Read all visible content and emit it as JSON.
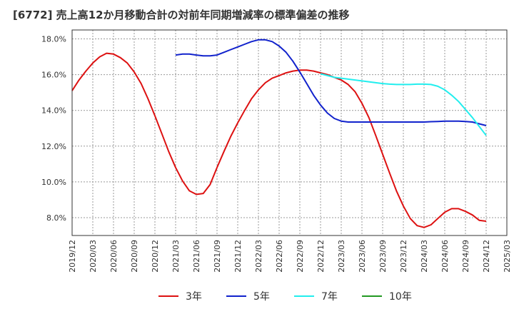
{
  "title": "[6772]  売上高12か月移動合計の対前年同期増減率の標準偏差の推移",
  "chart_data": {
    "type": "line",
    "title": "[6772]  売上高12か月移動合計の対前年同期増減率の標準偏差の推移",
    "xlabel": "",
    "ylabel": "",
    "x_ticks": [
      "2019/12",
      "2020/03",
      "2020/06",
      "2020/09",
      "2020/12",
      "2021/03",
      "2021/06",
      "2021/09",
      "2021/12",
      "2022/03",
      "2022/06",
      "2022/09",
      "2022/12",
      "2023/03",
      "2023/06",
      "2023/09",
      "2023/12",
      "2024/03",
      "2024/06",
      "2024/09",
      "2024/12",
      "2025/03"
    ],
    "y_ticks": [
      "8.0%",
      "10.0%",
      "12.0%",
      "14.0%",
      "16.0%",
      "18.0%"
    ],
    "ylim": [
      7.0,
      18.5
    ],
    "grid": true,
    "legend_position": "bottom",
    "series": [
      {
        "name": "3年",
        "color": "#dd1111",
        "x": [
          "2019/12",
          "2020/01",
          "2020/02",
          "2020/03",
          "2020/04",
          "2020/05",
          "2020/06",
          "2020/07",
          "2020/08",
          "2020/09",
          "2020/10",
          "2020/11",
          "2020/12",
          "2021/01",
          "2021/02",
          "2021/03",
          "2021/04",
          "2021/05",
          "2021/06",
          "2021/07",
          "2021/08",
          "2021/09",
          "2021/10",
          "2021/11",
          "2021/12",
          "2022/01",
          "2022/02",
          "2022/03",
          "2022/04",
          "2022/05",
          "2022/06",
          "2022/07",
          "2022/08",
          "2022/09",
          "2022/10",
          "2022/11",
          "2022/12",
          "2023/01",
          "2023/02",
          "2023/03",
          "2023/04",
          "2023/05",
          "2023/06",
          "2023/07",
          "2023/08",
          "2023/09",
          "2023/10",
          "2023/11",
          "2023/12",
          "2024/01",
          "2024/02",
          "2024/03",
          "2024/04",
          "2024/05",
          "2024/06",
          "2024/07",
          "2024/08",
          "2024/09",
          "2024/10",
          "2024/11",
          "2024/12"
        ],
        "values": [
          15.1,
          15.7,
          16.2,
          16.65,
          17.0,
          17.2,
          17.15,
          16.95,
          16.65,
          16.15,
          15.5,
          14.65,
          13.7,
          12.7,
          11.7,
          10.8,
          10.05,
          9.5,
          9.3,
          9.35,
          9.85,
          10.8,
          11.7,
          12.55,
          13.3,
          14.0,
          14.65,
          15.15,
          15.55,
          15.8,
          15.95,
          16.1,
          16.2,
          16.25,
          16.25,
          16.2,
          16.1,
          16.0,
          15.85,
          15.7,
          15.45,
          15.05,
          14.4,
          13.6,
          12.6,
          11.55,
          10.5,
          9.5,
          8.65,
          7.95,
          7.55,
          7.45,
          7.6,
          7.95,
          8.3,
          8.5,
          8.5,
          8.35,
          8.15,
          7.85,
          7.8
        ]
      },
      {
        "name": "5年",
        "color": "#1122cc",
        "x": [
          "2021/03",
          "2021/04",
          "2021/05",
          "2021/06",
          "2021/07",
          "2021/08",
          "2021/09",
          "2021/10",
          "2021/11",
          "2021/12",
          "2022/01",
          "2022/02",
          "2022/03",
          "2022/04",
          "2022/05",
          "2022/06",
          "2022/07",
          "2022/08",
          "2022/09",
          "2022/10",
          "2022/11",
          "2022/12",
          "2023/01",
          "2023/02",
          "2023/03",
          "2023/04",
          "2023/05",
          "2023/06",
          "2023/07",
          "2023/08",
          "2023/09",
          "2023/10",
          "2023/11",
          "2023/12",
          "2024/01",
          "2024/02",
          "2024/03",
          "2024/04",
          "2024/05",
          "2024/06",
          "2024/07",
          "2024/08",
          "2024/09",
          "2024/10",
          "2024/11",
          "2024/12"
        ],
        "values": [
          17.1,
          17.15,
          17.15,
          17.1,
          17.05,
          17.05,
          17.1,
          17.25,
          17.4,
          17.55,
          17.7,
          17.85,
          17.95,
          17.95,
          17.85,
          17.6,
          17.25,
          16.75,
          16.15,
          15.5,
          14.85,
          14.3,
          13.85,
          13.55,
          13.4,
          13.35,
          13.35,
          13.35,
          13.35,
          13.35,
          13.35,
          13.35,
          13.35,
          13.35,
          13.35,
          13.35,
          13.35,
          13.37,
          13.38,
          13.4,
          13.4,
          13.4,
          13.38,
          13.35,
          13.25,
          13.15
        ]
      },
      {
        "name": "7年",
        "color": "#22eeee",
        "x": [
          "2022/12",
          "2023/01",
          "2023/02",
          "2023/03",
          "2023/04",
          "2023/05",
          "2023/06",
          "2023/07",
          "2023/08",
          "2023/09",
          "2023/10",
          "2023/11",
          "2023/12",
          "2024/01",
          "2024/02",
          "2024/03",
          "2024/04",
          "2024/05",
          "2024/06",
          "2024/07",
          "2024/08",
          "2024/09",
          "2024/10",
          "2024/11",
          "2024/12"
        ],
        "values": [
          16.05,
          15.95,
          15.85,
          15.8,
          15.75,
          15.7,
          15.65,
          15.6,
          15.55,
          15.5,
          15.47,
          15.45,
          15.45,
          15.45,
          15.47,
          15.47,
          15.45,
          15.35,
          15.15,
          14.85,
          14.5,
          14.05,
          13.6,
          13.1,
          12.6
        ]
      },
      {
        "name": "10年",
        "color": "#229922",
        "x": [],
        "values": []
      }
    ]
  }
}
